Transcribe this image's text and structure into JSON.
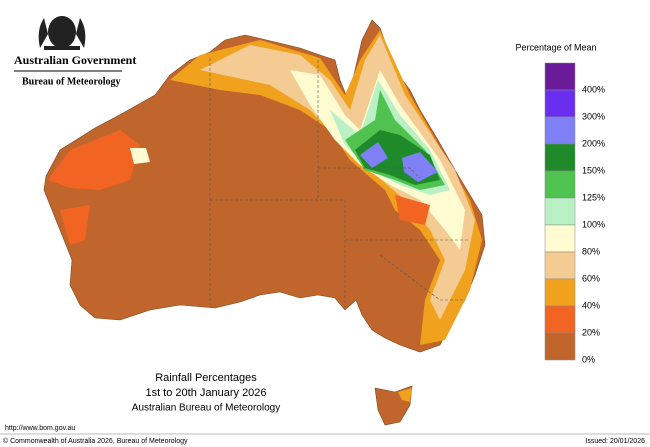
{
  "header": {
    "government": "Australian Government",
    "agency": "Bureau of Meteorology"
  },
  "legend": {
    "title": "Percentage of Mean",
    "items": [
      {
        "label": "400%",
        "color": "#6a1b9a"
      },
      {
        "label": "300%",
        "color": "#6a2ef0"
      },
      {
        "label": "200%",
        "color": "#7f80f5"
      },
      {
        "label": "150%",
        "color": "#1f8a2a"
      },
      {
        "label": "125%",
        "color": "#4fc24f"
      },
      {
        "label": "100%",
        "color": "#b9f1c4"
      },
      {
        "label": "80%",
        "color": "#fffcd2"
      },
      {
        "label": "60%",
        "color": "#f4cb92"
      },
      {
        "label": "40%",
        "color": "#f0a21f"
      },
      {
        "label": "20%",
        "color": "#f26422"
      },
      {
        "label": "0%",
        "color": "#c0652b"
      }
    ]
  },
  "caption": {
    "title": "Rainfall Percentages",
    "period": "1st to 20th January 2026",
    "source": "Australian Bureau of Meteorology"
  },
  "footer": {
    "url": "http://www.bom.gov.au",
    "copyright": "© Commonwealth of Australia 2026, Bureau of Meteorology",
    "issued": "Issued: 20/01/2026"
  }
}
